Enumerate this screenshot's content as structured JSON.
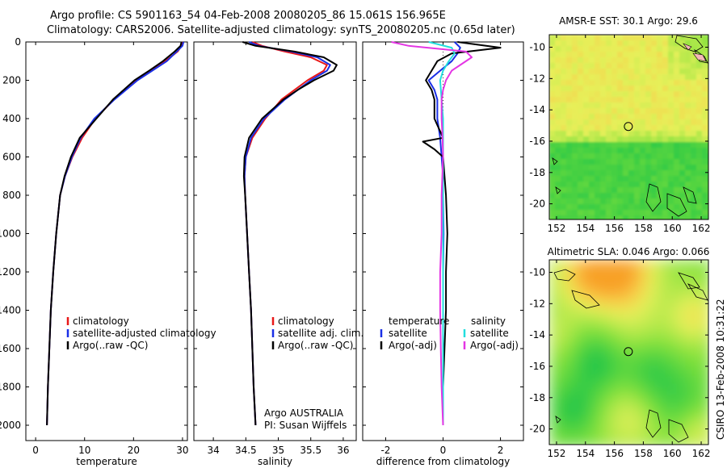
{
  "title": {
    "line1": "Argo profile: CS 5901163_54 04-Feb-2008 20080205_86 15.061S 156.965E",
    "line2": "Climatology: CARS2006. Satellite-adjusted climatology: synTS_20080205.nc (0.65d later)"
  },
  "side_label": "CSIRO 13-Feb-2008 10:31:22",
  "colors": {
    "climatology": "#e81818",
    "satellite": "#1a2fe6",
    "argo": "#000000",
    "argo_salinity_diff": "#e436e4",
    "sat_salinity_diff": "#22dede"
  },
  "chart_data": [
    {
      "type": "line",
      "name": "temperature-profile",
      "xlabel": "temperature",
      "xlim": [
        -2,
        31
      ],
      "xticks": [
        0,
        10,
        20,
        30
      ],
      "ylim": [
        2080,
        0
      ],
      "yticks": [
        0,
        200,
        400,
        600,
        800,
        1000,
        1200,
        1400,
        1600,
        1800,
        2000
      ],
      "legend": [
        "climatology",
        "satellite-adjusted climatology",
        "Argo(..raw -QC)"
      ],
      "series": [
        {
          "name": "climatology",
          "color_key": "climatology",
          "depth": [
            0,
            20,
            50,
            100,
            150,
            200,
            300,
            400,
            500,
            600,
            700,
            800,
            1000,
            1200,
            1400,
            1600,
            1800,
            2000
          ],
          "values": [
            30.0,
            29.8,
            29.0,
            26.5,
            23.5,
            20.5,
            16.0,
            12.2,
            9.5,
            7.5,
            6.0,
            5.0,
            4.2,
            3.6,
            3.1,
            2.8,
            2.5,
            2.3
          ]
        },
        {
          "name": "satellite",
          "color_key": "satellite",
          "depth": [
            0,
            20,
            50,
            100,
            150,
            200,
            300,
            400,
            500,
            600,
            700,
            800,
            1000,
            1200,
            1400,
            1600,
            1800,
            2000
          ],
          "values": [
            30.2,
            30.0,
            28.8,
            26.8,
            23.8,
            20.8,
            16.1,
            12.0,
            9.2,
            7.4,
            6.0,
            5.0,
            4.2,
            3.6,
            3.1,
            2.8,
            2.5,
            2.3
          ]
        },
        {
          "name": "argo",
          "color_key": "argo",
          "depth": [
            0,
            20,
            50,
            100,
            150,
            200,
            300,
            400,
            500,
            600,
            700,
            800,
            1000,
            1200,
            1400,
            1600,
            1800,
            2000
          ],
          "values": [
            29.8,
            29.6,
            28.4,
            26.0,
            23.2,
            20.2,
            15.8,
            12.4,
            9.0,
            7.2,
            5.9,
            5.0,
            4.2,
            3.6,
            3.1,
            2.8,
            2.5,
            2.3
          ]
        }
      ]
    },
    {
      "type": "line",
      "name": "salinity-profile",
      "xlabel": "salinity",
      "xlim": [
        33.7,
        36.2
      ],
      "xticks": [
        34,
        34.5,
        35,
        35.5,
        36
      ],
      "ylim": [
        2080,
        0
      ],
      "legend": [
        "climatology",
        "satellite adj. clim.",
        "Argo(..raw -QC)"
      ],
      "annotation": [
        "Argo AUSTRALIA",
        "PI: Susan Wijffels"
      ],
      "series": [
        {
          "name": "climatology",
          "color_key": "climatology",
          "depth": [
            0,
            20,
            50,
            80,
            120,
            150,
            200,
            250,
            300,
            400,
            500,
            600,
            700,
            800,
            1000,
            1200,
            1400,
            1600,
            1800,
            2000
          ],
          "values": [
            34.6,
            34.75,
            35.1,
            35.5,
            35.75,
            35.7,
            35.45,
            35.25,
            35.05,
            34.8,
            34.6,
            34.5,
            34.48,
            34.49,
            34.52,
            34.55,
            34.58,
            34.6,
            34.62,
            34.65
          ]
        },
        {
          "name": "satellite",
          "color_key": "satellite",
          "depth": [
            0,
            20,
            50,
            80,
            120,
            150,
            200,
            250,
            300,
            400,
            500,
            600,
            700,
            800,
            1000,
            1200,
            1400,
            1600,
            1800,
            2000
          ],
          "values": [
            34.55,
            34.7,
            35.2,
            35.6,
            35.8,
            35.75,
            35.5,
            35.3,
            35.1,
            34.78,
            34.58,
            34.5,
            34.48,
            34.49,
            34.52,
            34.55,
            34.58,
            34.6,
            34.62,
            34.65
          ]
        },
        {
          "name": "argo",
          "color_key": "argo",
          "depth": [
            0,
            20,
            50,
            80,
            120,
            150,
            200,
            250,
            300,
            400,
            500,
            600,
            700,
            800,
            1000,
            1200,
            1400,
            1600,
            1800,
            2000
          ],
          "values": [
            34.45,
            34.65,
            35.25,
            35.7,
            35.9,
            35.85,
            35.55,
            35.3,
            35.08,
            34.75,
            34.55,
            34.48,
            34.47,
            34.49,
            34.52,
            34.55,
            34.58,
            34.6,
            34.62,
            34.65
          ]
        }
      ]
    },
    {
      "type": "line",
      "name": "difference-profile",
      "xlabel": "difference from climatology",
      "xlim": [
        -2.8,
        2.8
      ],
      "xticks": [
        -2,
        0,
        2
      ],
      "ylim": [
        2080,
        0
      ],
      "legend_temperature": {
        "heading": "temperature",
        "items": [
          "satellite",
          "Argo(-adj)"
        ]
      },
      "legend_salinity": {
        "heading": "salinity",
        "items": [
          "satellite",
          "Argo(-adj)"
        ]
      },
      "series": [
        {
          "name": "temp-satellite",
          "color_key": "satellite",
          "depth": [
            0,
            30,
            60,
            100,
            150,
            200,
            250,
            300,
            400,
            500,
            600,
            700,
            800,
            1000,
            1200,
            1400,
            1600,
            1800,
            2000
          ],
          "values": [
            0.4,
            0.6,
            0.5,
            0.3,
            -0.1,
            -0.5,
            -0.3,
            -0.2,
            -0.2,
            -0.1,
            -0.05,
            0.0,
            0.0,
            0.02,
            0.0,
            0.0,
            0.0,
            0.0,
            0.0
          ]
        },
        {
          "name": "temp-argo",
          "color_key": "argo",
          "depth": [
            0,
            30,
            60,
            100,
            150,
            200,
            250,
            300,
            400,
            500,
            520,
            560,
            600,
            700,
            800,
            1000,
            1200,
            1400,
            1600,
            1800,
            2000
          ],
          "values": [
            0.5,
            2.0,
            0.3,
            -0.2,
            -0.4,
            -0.6,
            -0.4,
            -0.3,
            -0.3,
            0.0,
            -0.7,
            -0.3,
            0.0,
            0.05,
            0.1,
            0.15,
            0.1,
            0.1,
            0.05,
            0.0,
            0.0
          ]
        },
        {
          "name": "sal-satellite",
          "color_key": "sat_salinity_diff",
          "depth": [
            0,
            30,
            60,
            100,
            150,
            200,
            300,
            400,
            500,
            600,
            800,
            1000,
            1200,
            1400,
            1600,
            1800,
            2000
          ],
          "values": [
            -0.5,
            0.3,
            0.4,
            0.2,
            0.0,
            -0.1,
            -0.05,
            0.0,
            0.0,
            0.0,
            0.0,
            0.0,
            0.0,
            0.0,
            0.0,
            0.0,
            0.0
          ]
        },
        {
          "name": "sal-argo",
          "color_key": "argo_salinity_diff",
          "depth": [
            0,
            20,
            50,
            80,
            120,
            150,
            200,
            250,
            300,
            400,
            500,
            600,
            800,
            1000,
            1200,
            1400,
            1600,
            1800,
            2000
          ],
          "values": [
            -1.8,
            -1.2,
            0.8,
            1.0,
            0.6,
            0.3,
            0.1,
            0.0,
            -0.05,
            -0.05,
            -0.02,
            0.0,
            -0.05,
            -0.05,
            -0.1,
            -0.1,
            -0.08,
            -0.05,
            0.0
          ]
        }
      ]
    },
    {
      "type": "heatmap",
      "name": "sst-map",
      "title": "AMSR-E SST: 30.1 Argo: 29.6",
      "xlim": [
        151.5,
        162.5
      ],
      "ylim": [
        -21,
        -9.2
      ],
      "xticks": [
        152,
        154,
        156,
        158,
        160,
        162
      ],
      "yticks": [
        -10,
        -12,
        -14,
        -16,
        -18,
        -20
      ],
      "marker": {
        "lon": 156.965,
        "lat": -15.061
      }
    },
    {
      "type": "heatmap",
      "name": "sla-map",
      "title": "Altimetric SLA: 0.046 Argo: 0.066",
      "xlim": [
        151.5,
        162.5
      ],
      "ylim": [
        -21,
        -9.2
      ],
      "xticks": [
        152,
        154,
        156,
        158,
        160,
        162
      ],
      "yticks": [
        -10,
        -12,
        -14,
        -16,
        -18,
        -20
      ],
      "marker": {
        "lon": 156.965,
        "lat": -15.061
      }
    }
  ]
}
